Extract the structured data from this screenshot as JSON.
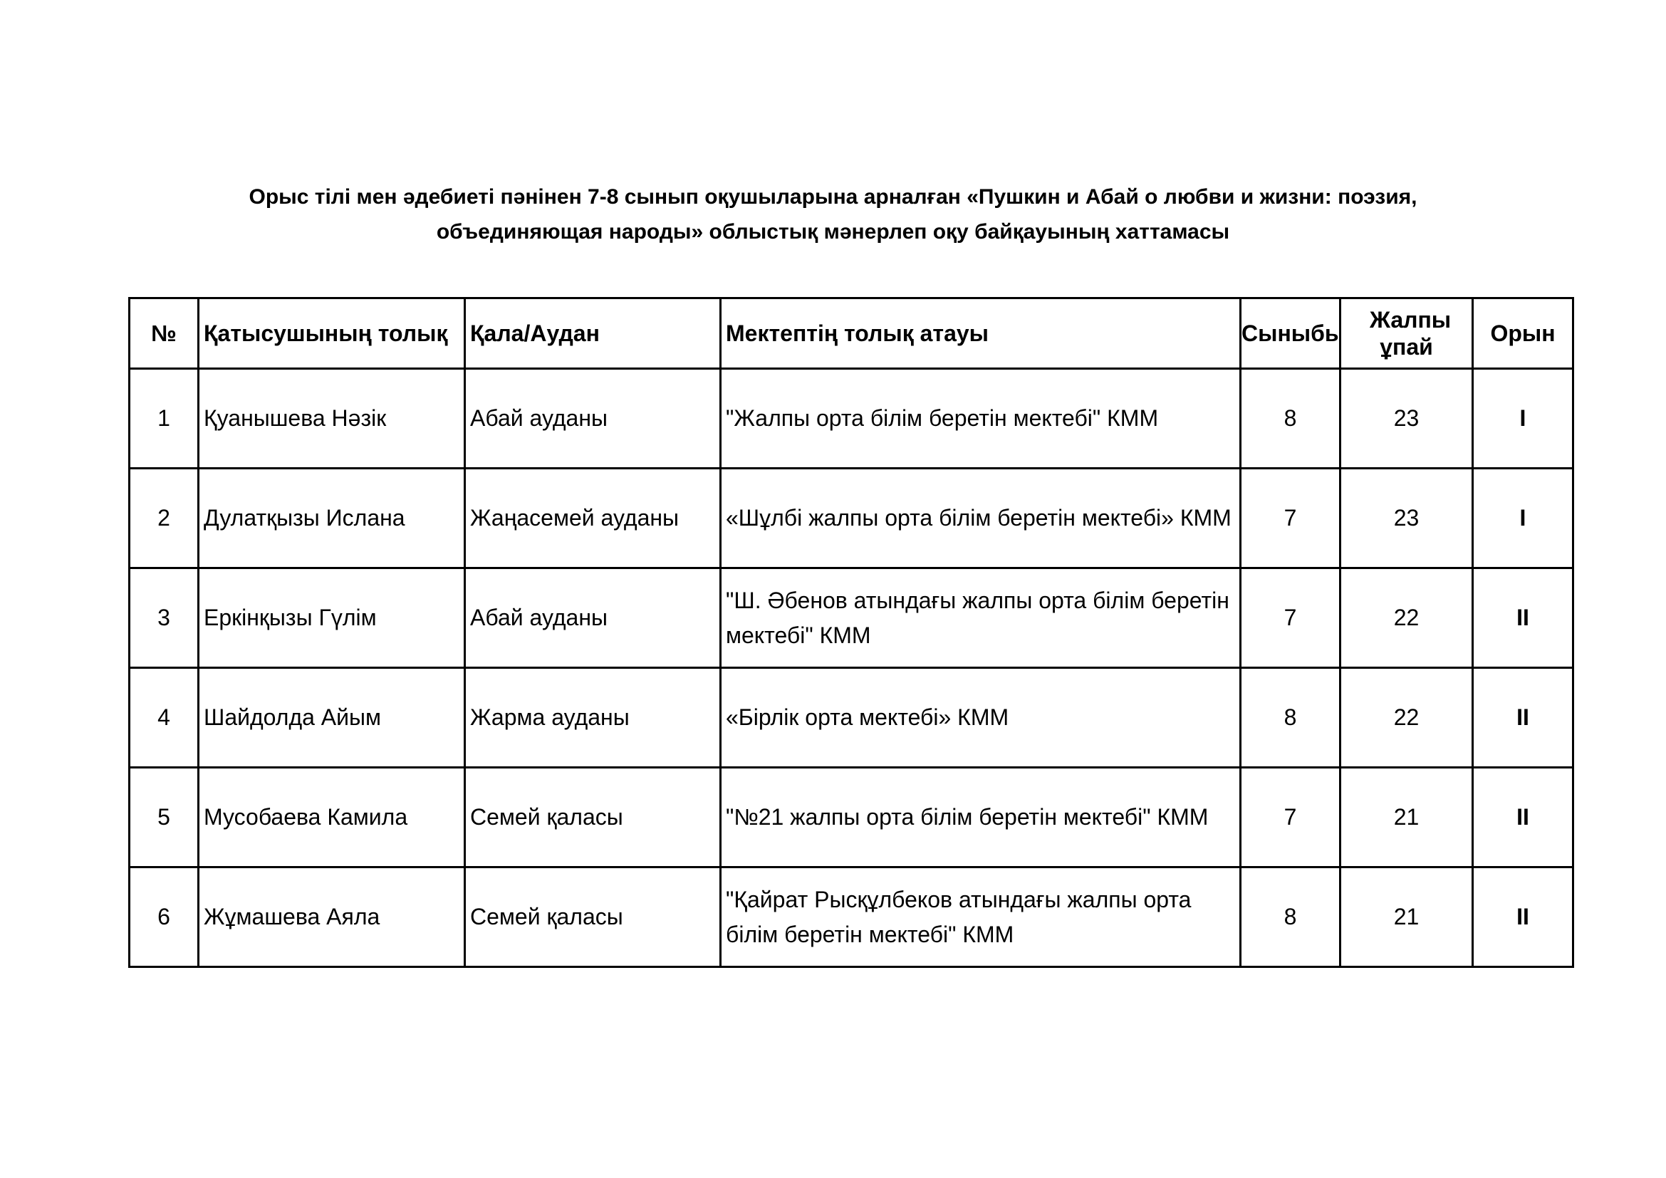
{
  "title": {
    "line1": "Орыс  тілі мен әдебиеті пәнінен 7-8 сынып оқушыларына арналған  «Пушкин  и  Абай  о  любви  и  жизни:  поэзия,",
    "line2": "объединяющая народы»  облыстық мәнерлеп оқу байқауының хаттамасы"
  },
  "table": {
    "headers": [
      "№",
      "Қатысушының толық",
      "Қала/Аудан",
      "Мектептің толық атауы",
      "Сыныбы",
      "Жалпы ұпай",
      "Орын"
    ],
    "rows": [
      {
        "no": "1",
        "name": "Қуанышева Нәзік",
        "district": "Абай ауданы",
        "school": "\"Жалпы орта білім беретін мектебі\" КММ",
        "grade": "8",
        "score": "23",
        "place": "I"
      },
      {
        "no": "2",
        "name": "Дулатқызы Ислана",
        "district": "Жаңасемей ауданы",
        "school": "«Шұлбі жалпы орта білім беретін мектебі» КММ",
        "grade": "7",
        "score": "23",
        "place": "I"
      },
      {
        "no": "3",
        "name": "Еркінқызы Гүлім",
        "district": "Абай ауданы",
        "school": "\"Ш. Әбенов атындағы жалпы орта білім беретін мектебі\" КММ",
        "grade": "7",
        "score": "22",
        "place": "II"
      },
      {
        "no": "4",
        "name": "Шайдолда Айым",
        "district": "Жарма ауданы",
        "school": "«Бірлік орта мектебі» КММ",
        "grade": "8",
        "score": "22",
        "place": "II"
      },
      {
        "no": "5",
        "name": "Мусобаева Камила",
        "district": "Семей қаласы",
        "school": "\"№21 жалпы орта білім беретін мектебі\" КММ",
        "grade": "7",
        "score": "21",
        "place": "II"
      },
      {
        "no": "6",
        "name": "Жұмашева Аяла",
        "district": "Семей қаласы",
        "school": "\"Қайрат Рысқұлбеков атындағы жалпы орта білім беретін мектебі\" КММ",
        "grade": "8",
        "score": "21",
        "place": "II"
      }
    ]
  }
}
